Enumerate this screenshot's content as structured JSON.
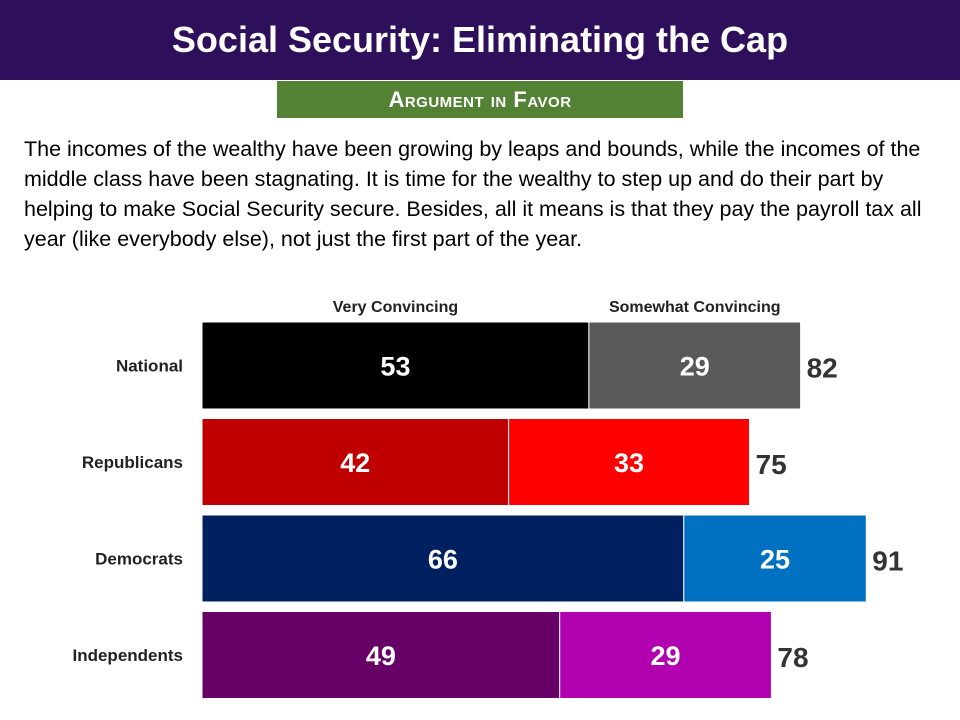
{
  "header": {
    "title": "Social Security: Eliminating the Cap",
    "subtitle": "Argument in Favor"
  },
  "body": {
    "text": "The incomes of the wealthy have been growing by leaps and bounds, while the incomes of the middle class have been stagnating. It is time for the wealthy to step up and do their part by helping to make Social Security secure. Besides, all it means is that they pay the payroll tax all year (like everybody  else), not just the first part of the year."
  },
  "chart_data": {
    "type": "bar",
    "orientation": "horizontal",
    "stacked": true,
    "categories": [
      "National",
      "Republicans",
      "Democrats",
      "Independents"
    ],
    "series": [
      {
        "name": "Very Convincing",
        "values": [
          53,
          42,
          66,
          49
        ]
      },
      {
        "name": "Somewhat Convincing",
        "values": [
          29,
          33,
          25,
          29
        ]
      }
    ],
    "totals": [
      82,
      75,
      91,
      78
    ],
    "colors": [
      [
        "#000000",
        "#595959"
      ],
      [
        "#c00000",
        "#ff0000"
      ],
      [
        "#002060",
        "#0070c0"
      ],
      [
        "#660066",
        "#b000b0"
      ]
    ],
    "xlim": [
      0,
      100
    ],
    "grid": false,
    "legend_position": "top"
  }
}
